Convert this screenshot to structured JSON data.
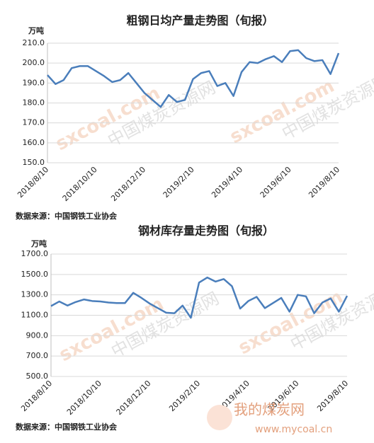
{
  "chart_data": [
    {
      "type": "line",
      "title": "粗钢日均产量走势图（旬报）",
      "y_label": "万吨",
      "categories": [
        "2018/8/10",
        null,
        null,
        null,
        null,
        null,
        "2018/10/10",
        null,
        null,
        null,
        null,
        null,
        "2018/12/10",
        null,
        null,
        null,
        null,
        null,
        "2019/2/10",
        null,
        null,
        null,
        null,
        null,
        "2019/4/10",
        null,
        null,
        null,
        null,
        null,
        "2019/6/10",
        null,
        null,
        null,
        null,
        null,
        "2019/8/10"
      ],
      "values": [
        194,
        189.5,
        191.5,
        197.5,
        198.5,
        198.5,
        196,
        193.5,
        190.5,
        191.5,
        195,
        190,
        185,
        181.5,
        178,
        184,
        180.5,
        181.5,
        192,
        195,
        196,
        188.5,
        190,
        183.5,
        195.5,
        200.5,
        200,
        202,
        203.5,
        200.5,
        206,
        206.5,
        202.5,
        201,
        201.5,
        194.5,
        205
      ],
      "color": "#4a7ebb",
      "ylim": [
        150,
        210
      ],
      "yticks": [
        {
          "value": 150,
          "label": "150.0"
        },
        {
          "value": 160,
          "label": "160.0"
        },
        {
          "value": 170,
          "label": "170.0"
        },
        {
          "value": 180,
          "label": "180.0"
        },
        {
          "value": 190,
          "label": "190.0"
        },
        {
          "value": 200,
          "label": "200.0"
        },
        {
          "value": 210,
          "label": "210.0"
        }
      ],
      "grid": true,
      "source": "数据来源：中国钢铁工业协会",
      "watermark": [
        "sxcoal.com",
        "中国煤炭资源网"
      ]
    },
    {
      "type": "line",
      "title": "钢材库存量走势图（旬报）",
      "y_label": "万吨",
      "categories": [
        "2018/8/10",
        null,
        null,
        null,
        null,
        null,
        "2018/10/10",
        null,
        null,
        null,
        null,
        null,
        "2018/12/10",
        null,
        null,
        null,
        null,
        null,
        "2019/2/10",
        null,
        null,
        null,
        null,
        null,
        "2019/4/10",
        null,
        null,
        null,
        null,
        null,
        "2019/6/10",
        null,
        null,
        null,
        null,
        null,
        "2019/8/10"
      ],
      "values": [
        1190,
        1235,
        1195,
        1230,
        1255,
        1240,
        1235,
        1225,
        1220,
        1220,
        1320,
        1270,
        1215,
        1170,
        1125,
        1120,
        1195,
        1075,
        1420,
        1470,
        1430,
        1455,
        1385,
        1165,
        1240,
        1280,
        1170,
        1220,
        1270,
        1135,
        1300,
        1285,
        1120,
        1225,
        1265,
        1135,
        1290
      ],
      "color": "#4a7ebb",
      "ylim": [
        500,
        1700
      ],
      "yticks": [
        {
          "value": 500,
          "label": "500.0"
        },
        {
          "value": 700,
          "label": "700.0"
        },
        {
          "value": 900,
          "label": "900.0"
        },
        {
          "value": 1100,
          "label": "1100.0"
        },
        {
          "value": 1300,
          "label": "1300.0"
        },
        {
          "value": 1500,
          "label": "1500.0"
        },
        {
          "value": 1700,
          "label": "1700.0"
        }
      ],
      "grid": true,
      "source": "数据来源：中国钢铁工业协会",
      "watermark": [
        "sxcoal.com",
        "中国煤炭资源网"
      ]
    }
  ],
  "logo": {
    "name": "我的煤炭网",
    "url": "www.mycoal.cn"
  }
}
